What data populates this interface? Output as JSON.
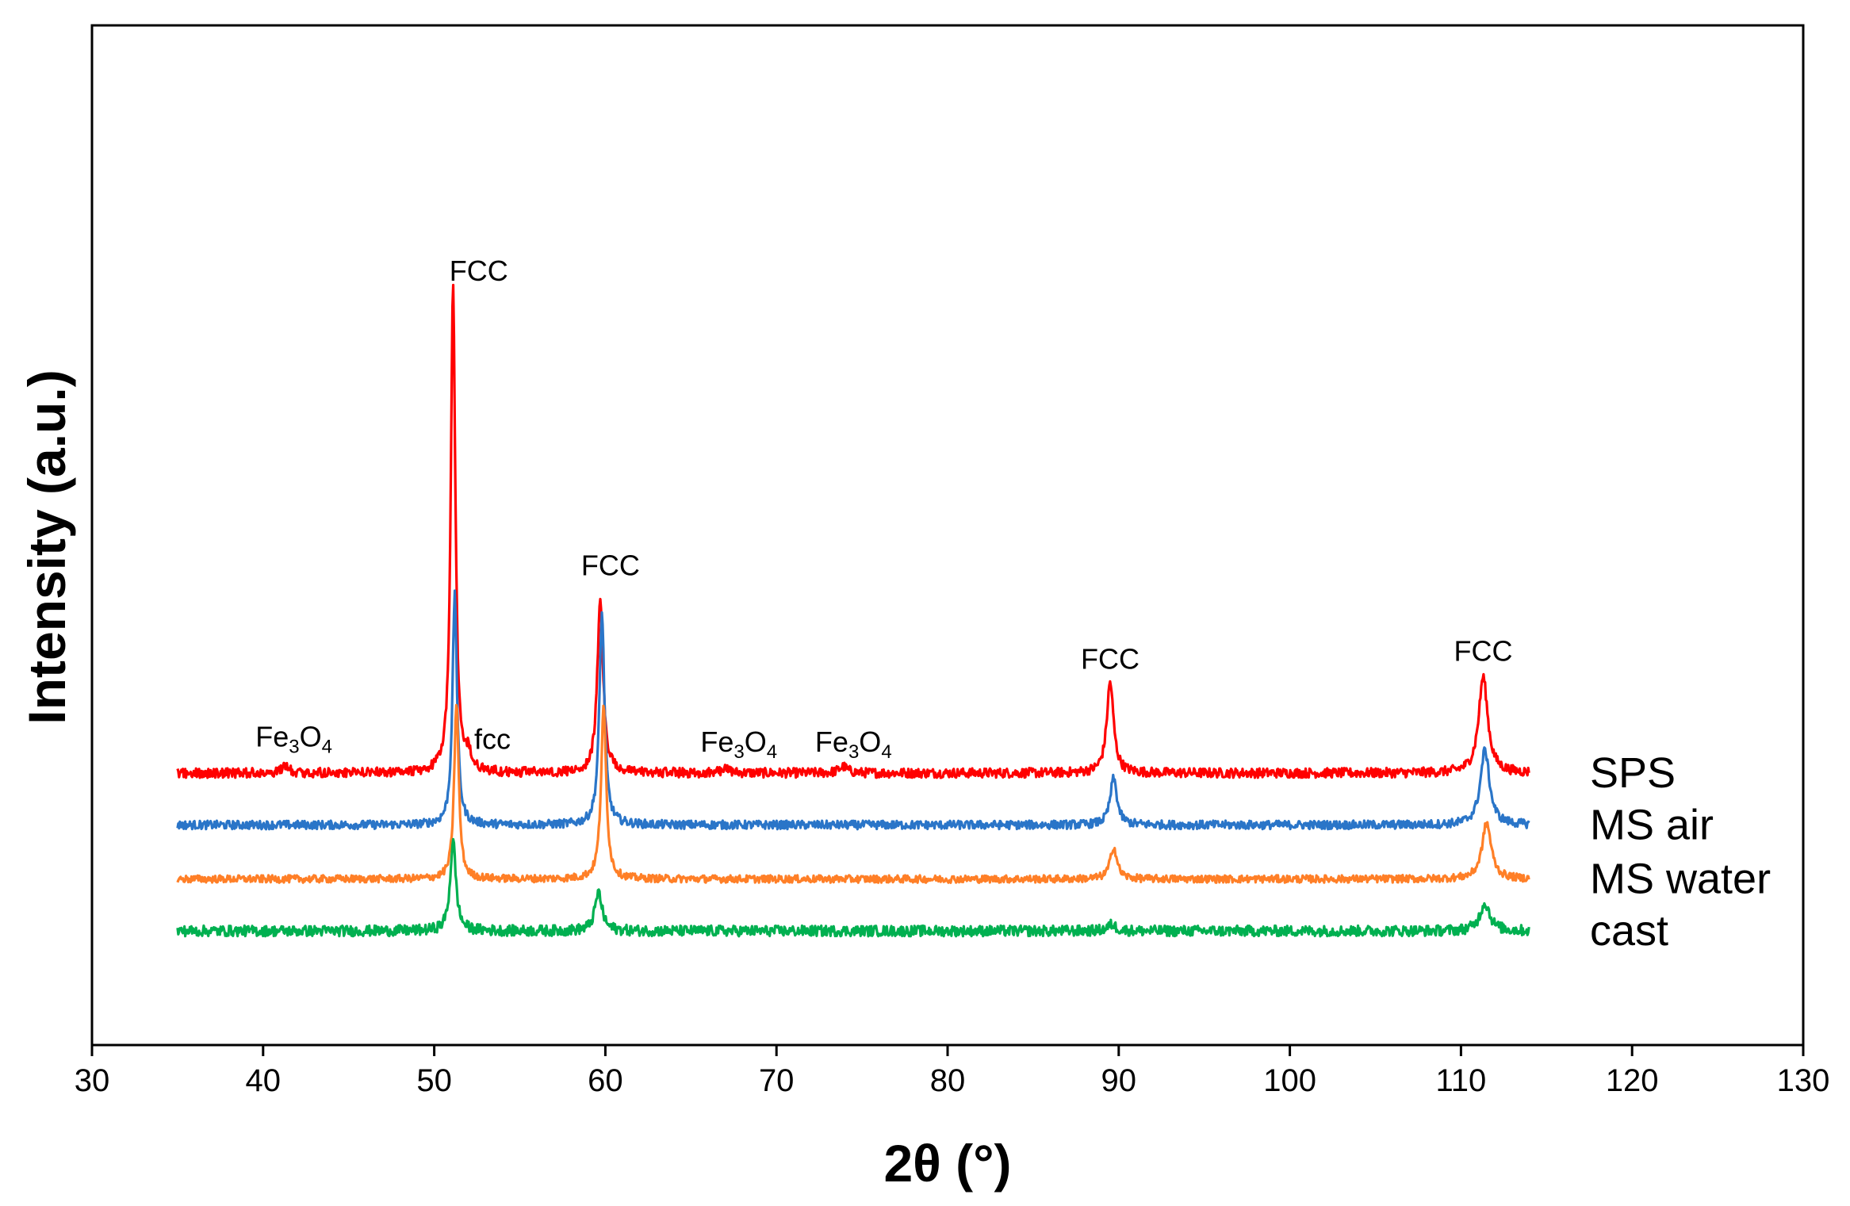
{
  "chart_data": {
    "type": "line",
    "title": "",
    "xlabel": "2θ (°)",
    "ylabel": "Intensity (a.u.)",
    "xlim": [
      30,
      130
    ],
    "xticks": [
      30,
      40,
      50,
      60,
      70,
      80,
      90,
      100,
      110,
      120,
      130
    ],
    "y_ticks_shown": false,
    "x_data_range": [
      35,
      114
    ],
    "series": [
      {
        "name": "SPS",
        "color": "#ff0000",
        "baseline": 0.0,
        "noise": 0.009,
        "peaks": [
          {
            "x": 41.3,
            "height": 0.012,
            "width": 0.25
          },
          {
            "x": 51.1,
            "height": 0.905,
            "width": 0.16
          },
          {
            "x": 52.0,
            "height": 0.028,
            "width": 0.2
          },
          {
            "x": 59.7,
            "height": 0.33,
            "width": 0.2
          },
          {
            "x": 67.0,
            "height": 0.008,
            "width": 0.3
          },
          {
            "x": 73.9,
            "height": 0.012,
            "width": 0.3
          },
          {
            "x": 89.5,
            "height": 0.17,
            "width": 0.24
          },
          {
            "x": 111.3,
            "height": 0.18,
            "width": 0.32
          }
        ]
      },
      {
        "name": "MS air",
        "color": "#2a75c8",
        "baseline": -0.097,
        "noise": 0.008,
        "peaks": [
          {
            "x": 51.2,
            "height": 0.43,
            "width": 0.16
          },
          {
            "x": 59.8,
            "height": 0.395,
            "width": 0.18
          },
          {
            "x": 89.7,
            "height": 0.087,
            "width": 0.24
          },
          {
            "x": 111.4,
            "height": 0.14,
            "width": 0.32
          }
        ]
      },
      {
        "name": "MS water",
        "color": "#ff7f27",
        "baseline": -0.198,
        "noise": 0.007,
        "peaks": [
          {
            "x": 51.3,
            "height": 0.33,
            "width": 0.16
          },
          {
            "x": 59.9,
            "height": 0.32,
            "width": 0.18
          },
          {
            "x": 89.7,
            "height": 0.06,
            "width": 0.24
          },
          {
            "x": 111.5,
            "height": 0.105,
            "width": 0.32
          }
        ]
      },
      {
        "name": "cast",
        "color": "#00b050",
        "baseline": -0.295,
        "noise": 0.01,
        "peaks": [
          {
            "x": 51.1,
            "height": 0.168,
            "width": 0.2
          },
          {
            "x": 59.6,
            "height": 0.072,
            "width": 0.25
          },
          {
            "x": 89.6,
            "height": 0.012,
            "width": 0.3
          },
          {
            "x": 111.4,
            "height": 0.052,
            "width": 0.35
          }
        ]
      }
    ],
    "annotations": [
      {
        "text": "FCC",
        "x": 52.6,
        "y": 0.92
      },
      {
        "text": "FCC",
        "x": 60.3,
        "y": 0.37
      },
      {
        "text": "FCC",
        "x": 89.5,
        "y": 0.195
      },
      {
        "text": "FCC",
        "x": 111.3,
        "y": 0.21
      },
      {
        "text": "fcc",
        "x": 53.4,
        "y": 0.045
      },
      {
        "text": "Fe",
        "sub": "3",
        "text2": "O",
        "sub2": "4",
        "x": 41.8,
        "y": 0.05
      },
      {
        "text": "Fe",
        "sub": "3",
        "text2": "O",
        "sub2": "4",
        "x": 67.8,
        "y": 0.04
      },
      {
        "text": "Fe",
        "sub": "3",
        "text2": "O",
        "sub2": "4",
        "x": 74.5,
        "y": 0.04
      }
    ]
  }
}
